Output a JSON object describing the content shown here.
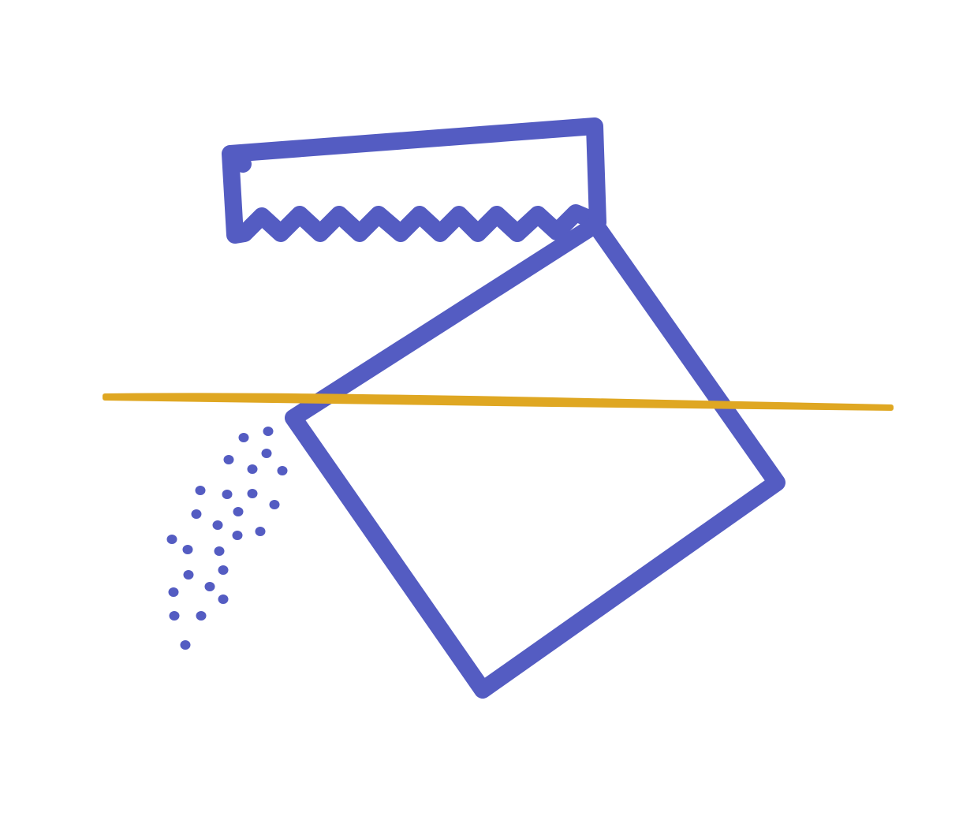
{
  "illustration": {
    "icon": "sugar-packet-pouring-icon",
    "colors": {
      "background": "#ffffff",
      "outline": "#545cc2",
      "accent_stroke": "#dfa722"
    }
  }
}
